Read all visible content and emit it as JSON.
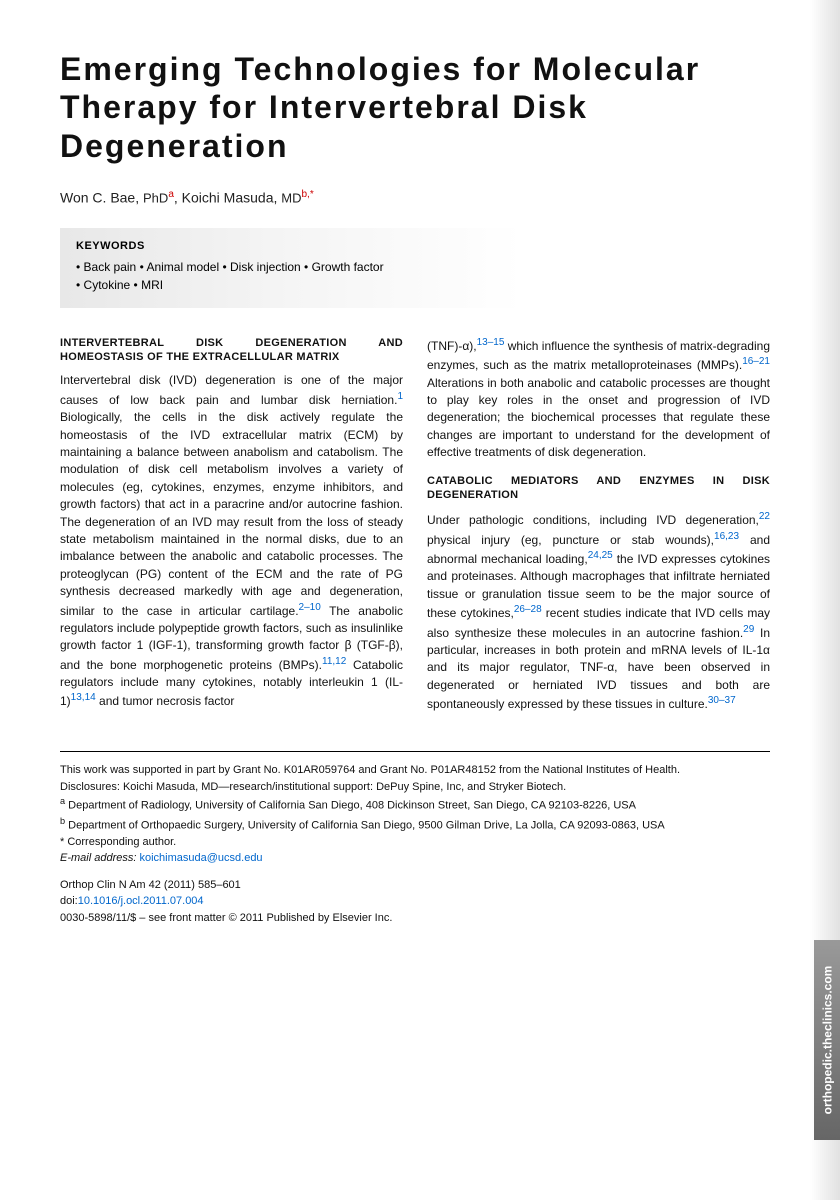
{
  "title": "Emerging Technologies for Molecular Therapy for Intervertebral Disk Degeneration",
  "authors": {
    "a1_name": "Won C. Bae, ",
    "a1_deg": "PhD",
    "a1_aff": "a",
    "a2_name": ", Koichi Masuda, ",
    "a2_deg": "MD",
    "a2_aff": "b,",
    "a2_star": "*"
  },
  "keywords": {
    "heading": "KEYWORDS",
    "line1": "• Back pain • Animal model • Disk injection • Growth factor",
    "line2": "• Cytokine • MRI"
  },
  "sections": {
    "s1_heading": "INTERVERTEBRAL DISK DEGENERATION AND HOMEOSTASIS OF THE EXTRACELLULAR MATRIX",
    "s1_p1a": "Intervertebral disk (IVD) degeneration is one of the major causes of low back pain and lumbar disk herniation.",
    "s1_c1": "1",
    "s1_p1b": " Biologically, the cells in the disk actively regulate the homeostasis of the IVD extracellular matrix (ECM) by maintaining a balance between anabolism and catabolism. The modulation of disk cell metabolism involves a variety of molecules (eg, cytokines, enzymes, enzyme inhibitors, and growth factors) that act in a paracrine and/or autocrine fashion. The degeneration of an IVD may result from the loss of steady state metabolism maintained in the normal disks, due to an imbalance between the anabolic and catabolic processes. The proteoglycan (PG) content of the ECM and the rate of PG synthesis decreased markedly with age and degeneration, similar to the case in articular cartilage.",
    "s1_c2": "2–10",
    "s1_p1c": " The anabolic regulators include polypeptide growth factors, such as insulinlike growth factor 1 (IGF-1), transforming growth factor β (TGF-β), and the bone morphogenetic proteins (BMPs).",
    "s1_c3": "11,12",
    "s1_p1d": " Catabolic regulators include many cytokines, notably interleukin 1 (IL-1)",
    "s1_c4": "13,14",
    "s1_p1e": " and tumor necrosis factor",
    "s1_col2a": "(TNF)-α),",
    "s1_c5": "13–15",
    "s1_col2b": " which influence the synthesis of matrix-degrading enzymes, such as the matrix metalloproteinases (MMPs).",
    "s1_c6": "16–21",
    "s1_col2c": " Alterations in both anabolic and catabolic processes are thought to play key roles in the onset and progression of IVD degeneration; the biochemical processes that regulate these changes are important to understand for the development of effective treatments of disk degeneration.",
    "s2_heading": "CATABOLIC MEDIATORS AND ENZYMES IN DISK DEGENERATION",
    "s2_p1a": "Under pathologic conditions, including IVD degeneration,",
    "s2_c1": "22",
    "s2_p1b": " physical injury (eg, puncture or stab wounds),",
    "s2_c2": "16,23",
    "s2_p1c": " and abnormal mechanical loading,",
    "s2_c3": "24,25",
    "s2_p1d": " the IVD expresses cytokines and proteinases. Although macrophages that infiltrate herniated tissue or granulation tissue seem to be the major source of these cytokines,",
    "s2_c4": "26–28",
    "s2_p1e": " recent studies indicate that IVD cells may also synthesize these molecules in an autocrine fashion.",
    "s2_c5": "29",
    "s2_p1f": " In particular, increases in both protein and mRNA levels of IL-1α and its major regulator, TNF-α, have been observed in degenerated or herniated IVD tissues and both are spontaneously expressed by these tissues in culture.",
    "s2_c6": "30–37"
  },
  "footer": {
    "funding": "This work was supported in part by Grant No. K01AR059764 and Grant No. P01AR48152 from the National Institutes of Health.",
    "disclosures": "Disclosures: Koichi Masuda, MD—research/institutional support: DePuy Spine, Inc, and Stryker Biotech.",
    "aff_a": "Department of Radiology, University of California San Diego, 408 Dickinson Street, San Diego, CA 92103-8226, USA",
    "aff_b": "Department of Orthopaedic Surgery, University of California San Diego, 9500 Gilman Drive, La Jolla, CA 92093-0863, USA",
    "corr": "* Corresponding author.",
    "email_label": "E-mail address: ",
    "email": "koichimasuda@ucsd.edu",
    "journal": "Orthop Clin N Am 42 (2011) 585–601",
    "doi_label": "doi:",
    "doi": "10.1016/j.ocl.2011.07.004",
    "copyright": "0030-5898/11/$ – see front matter © 2011 Published by Elsevier Inc."
  },
  "sidetab": "orthopedic.theclinics.com",
  "colors": {
    "cite": "#0066cc",
    "aff": "#c00",
    "text": "#111",
    "kw_bg_from": "#e8e8e8",
    "kw_bg_to": "#ffffff",
    "tab_from": "#999",
    "tab_to": "#666"
  },
  "typography": {
    "title_pt": 32,
    "author_pt": 14,
    "body_pt": 12,
    "heading_pt": 11,
    "footer_pt": 11,
    "cite_pt": 10
  }
}
